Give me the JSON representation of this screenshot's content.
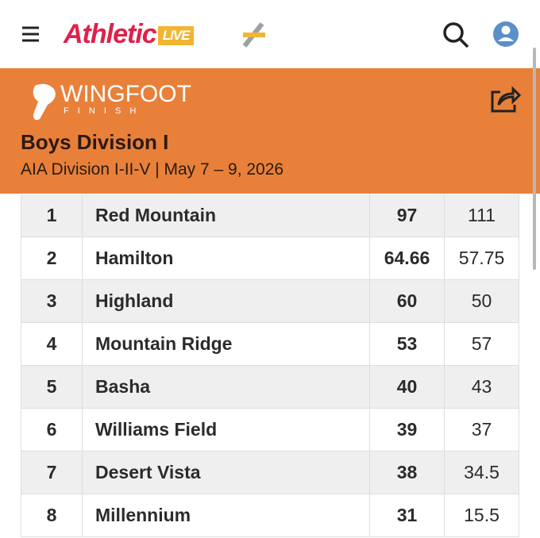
{
  "header": {
    "logo_main": "Athletic",
    "logo_badge": "LIVE"
  },
  "banner": {
    "brand": "WINGFOOT",
    "brand_sub": "F I N I S H",
    "title": "Boys Division I",
    "subtitle": "AIA Division I-II-V | May 7 – 9, 2026"
  },
  "table": {
    "rows": [
      [
        "1",
        "Red Mountain",
        "97",
        "111"
      ],
      [
        "2",
        "Hamilton",
        "64.66",
        "57.75"
      ],
      [
        "3",
        "Highland",
        "60",
        "50"
      ],
      [
        "4",
        "Mountain Ridge",
        "53",
        "57"
      ],
      [
        "5",
        "Basha",
        "40",
        "43"
      ],
      [
        "6",
        "Williams Field",
        "39",
        "37"
      ],
      [
        "7",
        "Desert Vista",
        "38",
        "34.5"
      ],
      [
        "8",
        "Millennium",
        "31",
        "15.5"
      ]
    ]
  }
}
